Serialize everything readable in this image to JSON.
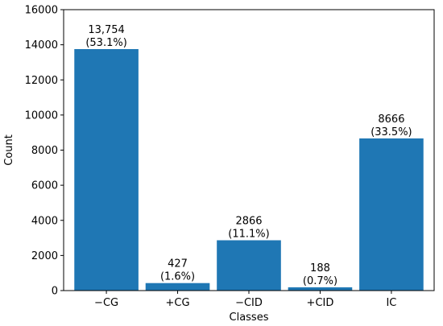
{
  "chart_data": {
    "type": "bar",
    "categories": [
      "−CG",
      "+CG",
      "−CID",
      "+CID",
      "IC"
    ],
    "values": [
      13754,
      427,
      2866,
      188,
      8666
    ],
    "value_labels": [
      "13,754",
      "427",
      "2866",
      "188",
      "8666"
    ],
    "percent_labels": [
      "(53.1%)",
      "(1.6%)",
      "(11.1%)",
      "(0.7%)",
      "(33.5%)"
    ],
    "title": "",
    "xlabel": "Classes",
    "ylabel": "Count",
    "ylim": [
      0,
      16000
    ],
    "yticks": [
      0,
      2000,
      4000,
      6000,
      8000,
      10000,
      12000,
      14000,
      16000
    ],
    "grid": false,
    "bar_color": "#1f77b4"
  }
}
